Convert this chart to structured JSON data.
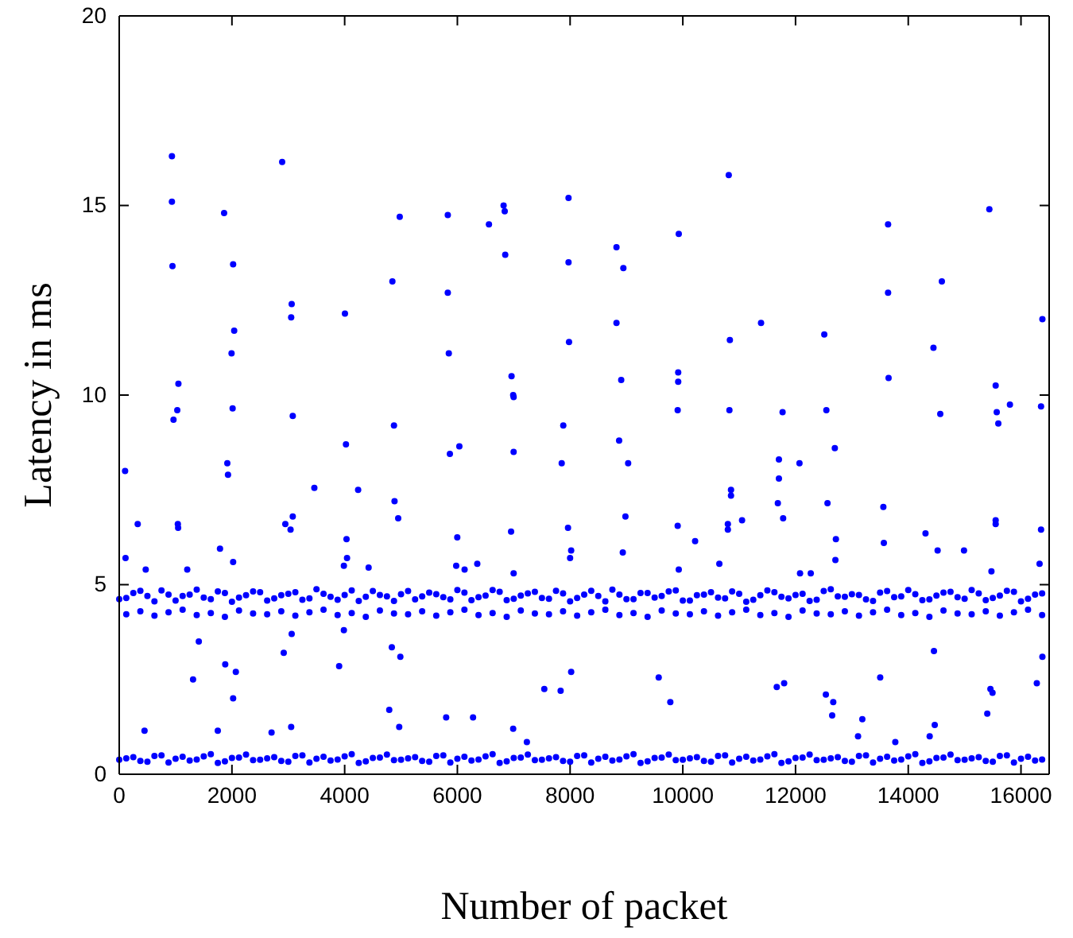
{
  "chart_data": {
    "type": "scatter",
    "xlabel": "Number of packet",
    "ylabel": "Latency in ms",
    "xlim": [
      0,
      16500
    ],
    "ylim": [
      0,
      20
    ],
    "xticks": [
      0,
      2000,
      4000,
      6000,
      8000,
      10000,
      12000,
      14000,
      16000
    ],
    "yticks": [
      0,
      5,
      10,
      15,
      20
    ],
    "grid": false,
    "marker": "circle",
    "series": [
      {
        "color": "#0000ff",
        "x": [
          0,
          250,
          500,
          750,
          1000,
          1250,
          1500,
          1750,
          2000,
          2250,
          2500,
          2750,
          3000,
          3250,
          3500,
          3750,
          4000,
          4250,
          4500,
          4750,
          5000,
          5250,
          5500,
          5750,
          6000,
          6250,
          6500,
          6750,
          7000,
          7250,
          7500,
          7750,
          8000,
          8250,
          8500,
          8750,
          9000,
          9250,
          9500,
          9750,
          10000,
          10250,
          10500,
          10750,
          11000,
          11250,
          11500,
          11750,
          12000,
          12250,
          12500,
          12750,
          13000,
          13250,
          13500,
          13750,
          14000,
          14250,
          14500,
          14750,
          15000,
          15250,
          15500,
          15750,
          16000,
          16250
        ],
        "values": [
          4.62,
          4.78,
          4.7,
          4.85,
          4.58,
          4.74,
          4.66,
          4.82,
          4.55,
          4.72,
          4.8,
          4.64,
          4.76,
          4.6,
          4.88,
          4.68,
          4.73,
          4.57,
          4.83,
          4.69,
          4.75,
          4.61,
          4.79,
          4.67,
          4.86,
          4.59,
          4.71,
          4.81,
          4.63,
          4.77,
          4.65,
          4.84,
          4.56,
          4.74,
          4.7,
          4.87,
          4.62,
          4.78,
          4.66,
          4.82,
          4.58,
          4.72,
          4.8,
          4.64,
          4.76,
          4.6,
          4.85,
          4.68,
          4.73,
          4.57,
          4.83,
          4.69,
          4.75,
          4.61,
          4.79,
          4.67,
          4.86,
          4.59,
          4.71,
          4.81,
          4.63,
          4.77,
          4.65,
          4.84,
          4.56,
          4.74
        ]
      },
      {
        "color": "#0000ff",
        "x": [
          125,
          375,
          625,
          875,
          1125,
          1375,
          1625,
          1875,
          2125,
          2375,
          2625,
          2875,
          3125,
          3375,
          3625,
          3875,
          4125,
          4375,
          4625,
          4875,
          5125,
          5375,
          5625,
          5875,
          6125,
          6375,
          6625,
          6875,
          7125,
          7375,
          7625,
          7875,
          8125,
          8375,
          8625,
          8875,
          9125,
          9375,
          9625,
          9875,
          10125,
          10375,
          10625,
          10875,
          11125,
          11375,
          11625,
          11875,
          12125,
          12375,
          12625,
          12875,
          13125,
          13375,
          13625,
          13875,
          14125,
          14375,
          14625,
          14875,
          15125,
          15375,
          15625,
          15875,
          16125,
          16375
        ],
        "values": [
          4.65,
          4.84,
          4.56,
          4.74,
          4.7,
          4.87,
          4.62,
          4.78,
          4.66,
          4.82,
          4.58,
          4.72,
          4.8,
          4.64,
          4.76,
          4.6,
          4.85,
          4.68,
          4.73,
          4.57,
          4.83,
          4.69,
          4.75,
          4.61,
          4.79,
          4.67,
          4.86,
          4.59,
          4.71,
          4.81,
          4.63,
          4.77,
          4.65,
          4.84,
          4.56,
          4.74,
          4.62,
          4.78,
          4.7,
          4.85,
          4.58,
          4.74,
          4.66,
          4.82,
          4.55,
          4.72,
          4.8,
          4.64,
          4.76,
          4.6,
          4.88,
          4.68,
          4.73,
          4.57,
          4.83,
          4.69,
          4.75,
          4.61,
          4.79,
          4.67,
          4.86,
          4.59,
          4.71,
          4.81,
          4.63,
          4.77
        ]
      },
      {
        "color": "#0000ff",
        "x": [
          125,
          375,
          625,
          875,
          1125,
          1375,
          1625,
          1875,
          2125,
          2375,
          2625,
          2875,
          3125,
          3375,
          3625,
          3875,
          4125,
          4375,
          4625,
          4875,
          5125,
          5375,
          5625,
          5875,
          6125,
          6375,
          6625,
          6875,
          7125,
          7375,
          7625,
          7875,
          8125,
          8375,
          8625,
          8875,
          9125,
          9375,
          9625,
          9875,
          10125,
          10375,
          10625,
          10875,
          11125,
          11375,
          11625,
          11875,
          12125,
          12375,
          12625,
          12875,
          13125,
          13375,
          13625,
          13875,
          14125,
          14375,
          14625,
          14875,
          15125,
          15375,
          15625,
          15875,
          16125,
          16375
        ],
        "values": [
          4.22,
          4.3,
          4.18,
          4.27,
          4.34,
          4.2,
          4.25,
          4.15,
          4.32,
          4.24,
          4.22,
          4.3,
          4.18,
          4.27,
          4.34,
          4.2,
          4.25,
          4.15,
          4.32,
          4.24,
          4.22,
          4.3,
          4.18,
          4.27,
          4.34,
          4.2,
          4.25,
          4.15,
          4.32,
          4.24,
          4.22,
          4.3,
          4.18,
          4.27,
          4.34,
          4.2,
          4.25,
          4.15,
          4.32,
          4.24,
          4.22,
          4.3,
          4.18,
          4.27,
          4.34,
          4.2,
          4.25,
          4.15,
          4.32,
          4.24,
          4.22,
          4.3,
          4.18,
          4.27,
          4.34,
          4.2,
          4.25,
          4.15,
          4.32,
          4.24,
          4.22,
          4.3,
          4.18,
          4.27,
          4.34,
          4.2
        ]
      },
      {
        "color": "#0000ff",
        "x": [
          0,
          250,
          500,
          750,
          1000,
          1250,
          1500,
          1750,
          2000,
          2250,
          2500,
          2750,
          3000,
          3250,
          3500,
          3750,
          4000,
          4250,
          4500,
          4750,
          5000,
          5250,
          5500,
          5750,
          6000,
          6250,
          6500,
          6750,
          7000,
          7250,
          7500,
          7750,
          8000,
          8250,
          8500,
          8750,
          9000,
          9250,
          9500,
          9750,
          10000,
          10250,
          10500,
          10750,
          11000,
          11250,
          11500,
          11750,
          12000,
          12250,
          12500,
          12750,
          13000,
          13250,
          13500,
          13750,
          14000,
          14250,
          14500,
          14750,
          15000,
          15250,
          15500,
          15750,
          16000,
          16250
        ],
        "values": [
          0.38,
          0.45,
          0.33,
          0.5,
          0.41,
          0.36,
          0.47,
          0.3,
          0.43,
          0.52,
          0.38,
          0.45,
          0.33,
          0.5,
          0.41,
          0.36,
          0.47,
          0.3,
          0.43,
          0.52,
          0.38,
          0.45,
          0.33,
          0.5,
          0.41,
          0.36,
          0.47,
          0.3,
          0.43,
          0.52,
          0.38,
          0.45,
          0.33,
          0.5,
          0.41,
          0.36,
          0.47,
          0.3,
          0.43,
          0.52,
          0.38,
          0.45,
          0.33,
          0.5,
          0.41,
          0.36,
          0.47,
          0.3,
          0.43,
          0.52,
          0.38,
          0.45,
          0.33,
          0.5,
          0.41,
          0.36,
          0.47,
          0.3,
          0.43,
          0.52,
          0.38,
          0.45,
          0.33,
          0.5,
          0.41,
          0.36
        ]
      },
      {
        "color": "#0000ff",
        "x": [
          125,
          375,
          625,
          875,
          1125,
          1375,
          1625,
          1875,
          2125,
          2375,
          2625,
          2875,
          3125,
          3375,
          3625,
          3875,
          4125,
          4375,
          4625,
          4875,
          5125,
          5375,
          5625,
          5875,
          6125,
          6375,
          6625,
          6875,
          7125,
          7375,
          7625,
          7875,
          8125,
          8375,
          8625,
          8875,
          9125,
          9375,
          9625,
          9875,
          10125,
          10375,
          10625,
          10875,
          11125,
          11375,
          11625,
          11875,
          12125,
          12375,
          12625,
          12875,
          13125,
          13375,
          13625,
          13875,
          14125,
          14375,
          14625,
          14875,
          15125,
          15375,
          15625,
          15875,
          16125,
          16375
        ],
        "values": [
          0.42,
          0.35,
          0.48,
          0.31,
          0.46,
          0.39,
          0.53,
          0.34,
          0.44,
          0.37,
          0.42,
          0.35,
          0.48,
          0.31,
          0.46,
          0.39,
          0.53,
          0.34,
          0.44,
          0.37,
          0.42,
          0.35,
          0.48,
          0.31,
          0.46,
          0.39,
          0.53,
          0.34,
          0.44,
          0.37,
          0.42,
          0.35,
          0.48,
          0.31,
          0.46,
          0.39,
          0.53,
          0.34,
          0.44,
          0.37,
          0.42,
          0.35,
          0.48,
          0.31,
          0.46,
          0.39,
          0.53,
          0.34,
          0.44,
          0.37,
          0.42,
          0.35,
          0.48,
          0.31,
          0.46,
          0.39,
          0.53,
          0.34,
          0.44,
          0.37,
          0.42,
          0.35,
          0.48,
          0.31,
          0.46,
          0.39
        ]
      },
      {
        "color": "#0000ff",
        "x": [
          935,
          935,
          945,
          1050,
          1861,
          2021,
          2040,
          1993,
          2891,
          3060,
          3051,
          4005,
          4847,
          4977,
          5830,
          5830,
          5848,
          6560,
          6820,
          6840,
          6849,
          6961,
          6990,
          7972,
          7972,
          7981,
          8823,
          8945,
          8823,
          8907,
          9928,
          9918,
          9918,
          10815,
          10835,
          11388,
          12510,
          13642,
          13642,
          13651,
          14447,
          14596,
          15439,
          15551,
          16380,
          963,
          1030,
          104,
          112,
          328,
          1040,
          1045,
          1207,
          470,
          2012,
          1918,
          1930,
          1788,
          2021,
          3079,
          2947,
          3040,
          3079,
          4023,
          3462,
          4239,
          4033,
          4042,
          3986,
          4425,
          4875,
          4885,
          4950,
          5867,
          6035,
          5998,
          5979,
          6128,
          6353,
          6998,
          6998,
          6953,
          6998,
          7879,
          7851,
          7963,
          8019,
          8000,
          1412,
          3060,
          2919,
          3986,
          3902,
          4837,
          4988,
          1310,
          1881,
          2069,
          2021,
          449,
          1749,
          3051,
          2703,
          4968,
          4791,
          5801,
          6278,
          6990,
          7542,
          7832,
          8019,
          7233,
          8870,
          9030,
          8982,
          8935,
          9909,
          9909,
          9928,
          10218,
          10827,
          10855,
          10855,
          10799,
          10799,
          11051,
          10648,
          11770,
          11705,
          11705,
          11686,
          11780,
          12070,
          12080,
          12270,
          12547,
          12697,
          12567,
          12716,
          12707,
          13558,
          13567,
          14568,
          14306,
          14521,
          14989,
          15570,
          15804,
          15598,
          15551,
          15551,
          16356,
          16356,
          16330,
          15476,
          9572,
          9778,
          11667,
          11798,
          12538,
          12669,
          12650,
          13185,
          13109,
          13502,
          14456,
          14470,
          14380,
          13770,
          15458,
          15495,
          15402,
          16380,
          16281
        ],
        "values": [
          16.3,
          15.1,
          13.4,
          10.3,
          14.8,
          13.45,
          11.7,
          11.1,
          16.15,
          12.4,
          12.05,
          12.15,
          13.0,
          14.7,
          14.75,
          12.7,
          11.1,
          14.5,
          15.0,
          14.85,
          13.7,
          10.5,
          10.0,
          15.2,
          13.5,
          11.4,
          13.9,
          13.35,
          11.9,
          10.4,
          14.25,
          10.6,
          10.35,
          15.8,
          11.45,
          11.9,
          11.6,
          14.5,
          12.7,
          10.45,
          11.25,
          13.0,
          14.9,
          10.25,
          12.0,
          9.35,
          9.6,
          8.0,
          5.7,
          6.6,
          6.6,
          6.5,
          5.4,
          5.4,
          9.65,
          8.2,
          7.9,
          5.95,
          5.6,
          9.45,
          6.6,
          6.45,
          6.8,
          8.7,
          7.55,
          7.5,
          6.2,
          5.7,
          5.5,
          5.45,
          9.2,
          7.2,
          6.75,
          8.45,
          8.65,
          6.25,
          5.5,
          5.4,
          5.55,
          9.95,
          8.5,
          6.4,
          5.3,
          9.2,
          8.2,
          6.5,
          5.9,
          5.7,
          3.5,
          3.7,
          3.2,
          3.8,
          2.85,
          3.35,
          3.1,
          2.5,
          2.9,
          2.7,
          2.0,
          1.15,
          1.15,
          1.25,
          1.1,
          1.25,
          1.7,
          1.5,
          1.5,
          1.2,
          2.25,
          2.2,
          2.7,
          0.85,
          8.8,
          8.2,
          6.8,
          5.85,
          9.6,
          6.55,
          5.4,
          6.15,
          9.6,
          7.5,
          7.35,
          6.6,
          6.45,
          6.7,
          5.55,
          9.55,
          8.3,
          7.8,
          7.15,
          6.75,
          8.2,
          5.3,
          5.3,
          9.6,
          8.6,
          7.15,
          6.2,
          5.65,
          7.05,
          6.1,
          9.5,
          6.35,
          5.9,
          5.9,
          9.55,
          9.75,
          9.25,
          6.7,
          6.6,
          9.7,
          6.45,
          5.55,
          5.35,
          2.55,
          1.9,
          2.3,
          2.4,
          2.1,
          1.9,
          1.55,
          1.45,
          1.0,
          2.55,
          3.25,
          1.3,
          1.0,
          0.85,
          2.25,
          2.15,
          1.6,
          3.1,
          2.4
        ]
      }
    ]
  }
}
